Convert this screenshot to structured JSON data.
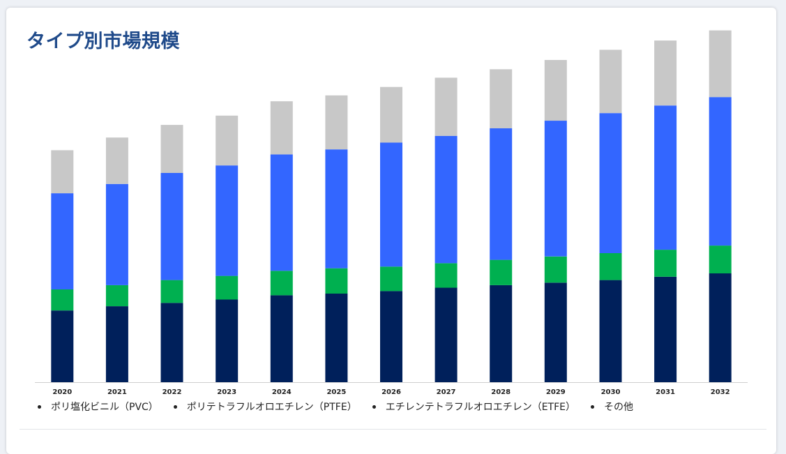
{
  "title": "タイプ別市場規模",
  "colors": {
    "title": "#1f4a8a"
  },
  "chart_data": {
    "type": "bar",
    "stacked": true,
    "categories": [
      "2020",
      "2021",
      "2022",
      "2023",
      "2024",
      "2025",
      "2026",
      "2027",
      "2028",
      "2029",
      "2030",
      "2031",
      "2032"
    ],
    "series": [
      {
        "name": "ポリ塩化ビニル（PVC）",
        "color": "#00205b",
        "values": [
          85,
          90,
          94,
          98,
          103,
          105,
          108,
          112,
          115,
          118,
          121,
          125,
          129
        ]
      },
      {
        "name": "ポリテトラフルオロエチレン（PTFE）",
        "color": "#00b050",
        "values": [
          25,
          25,
          27,
          28,
          29,
          30,
          29,
          29,
          30,
          31,
          32,
          32,
          33
        ]
      },
      {
        "name": "エチレンテトラフルオロエチレン（ETFE）",
        "color": "#3366ff",
        "values": [
          114,
          120,
          127,
          131,
          138,
          141,
          147,
          151,
          156,
          161,
          166,
          171,
          176
        ]
      },
      {
        "name": "その他",
        "color": "#c8c8c8",
        "values": [
          51,
          55,
          57,
          59,
          63,
          64,
          66,
          69,
          70,
          72,
          75,
          77,
          79
        ]
      }
    ],
    "ylim": [
      0,
      420
    ],
    "grid": false,
    "yaxis_visible": false,
    "legend_position": "bottom"
  }
}
